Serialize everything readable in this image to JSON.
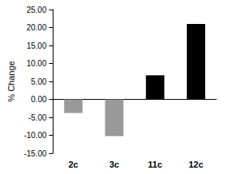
{
  "chart_data": {
    "type": "bar",
    "categories": [
      "2c",
      "3c",
      "11c",
      "12c"
    ],
    "values": [
      -3.8,
      -10.2,
      6.7,
      21.0
    ],
    "colors": [
      "#999999",
      "#999999",
      "#000000",
      "#000000"
    ],
    "y_label": "% Change",
    "ylim": [
      -15,
      25
    ],
    "yticks": [
      {
        "value": -15,
        "label": "-15.00"
      },
      {
        "value": -10,
        "label": "-10.00"
      },
      {
        "value": -5,
        "label": "-5.00"
      },
      {
        "value": 0,
        "label": "0.00"
      },
      {
        "value": 5,
        "label": "5.00"
      },
      {
        "value": 10,
        "label": "10.00"
      },
      {
        "value": 15,
        "label": "15.00"
      },
      {
        "value": 20,
        "label": "20.00"
      },
      {
        "value": 25,
        "label": "25.00"
      }
    ],
    "grid": false
  }
}
